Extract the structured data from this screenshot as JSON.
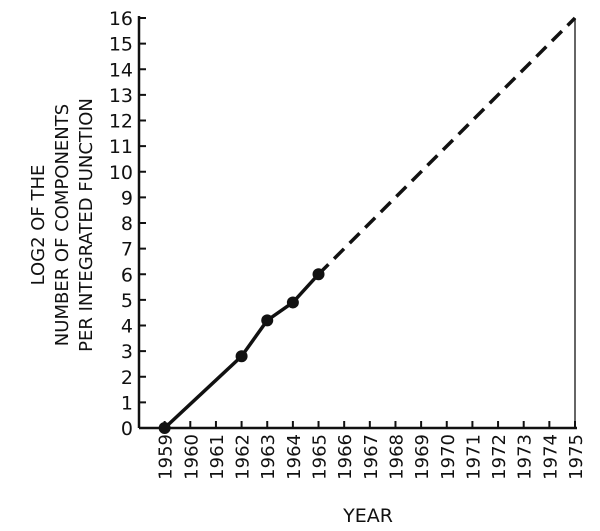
{
  "chart_data": {
    "type": "line",
    "title": "",
    "xlabel": "YEAR",
    "ylabel_lines": [
      "LOG2 OF THE",
      "NUMBER OF COMPONENTS",
      "PER INTEGRATED FUNCTION"
    ],
    "xlim": [
      1958,
      1975
    ],
    "ylim": [
      0,
      16
    ],
    "x_ticks": [
      "1959",
      "1960",
      "1961",
      "1962",
      "1963",
      "1964",
      "1965",
      "1966",
      "1967",
      "1968",
      "1969",
      "1970",
      "1971",
      "1972",
      "1973",
      "1974",
      "1975"
    ],
    "y_ticks": [
      "0",
      "1",
      "2",
      "3",
      "4",
      "5",
      "6",
      "7",
      "8",
      "9",
      "10",
      "11",
      "12",
      "13",
      "14",
      "15",
      "16"
    ],
    "grid": false,
    "series": [
      {
        "style": "solid",
        "markers": true,
        "x": [
          1959,
          1962,
          1963,
          1964,
          1965
        ],
        "y": [
          0,
          2.8,
          4.2,
          4.9,
          6
        ]
      },
      {
        "style": "dashed",
        "markers": false,
        "x": [
          1965,
          1975
        ],
        "y": [
          6,
          16
        ]
      }
    ],
    "colors": {
      "line": "#111111",
      "background": "#ffffff"
    }
  }
}
